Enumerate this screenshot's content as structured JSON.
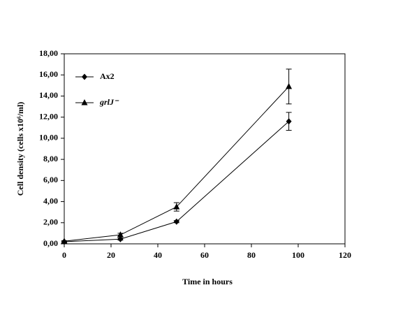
{
  "chart_data": {
    "type": "line",
    "xlabel": "Time in hours",
    "ylabel": "Cell density (cells x10⁶/ml)",
    "xlim": [
      0,
      120
    ],
    "xticks": [
      0,
      20,
      40,
      60,
      80,
      100,
      120
    ],
    "ylim": [
      0,
      18
    ],
    "yticks": [
      {
        "value": 0,
        "label": "0,00"
      },
      {
        "value": 2,
        "label": "2,00"
      },
      {
        "value": 4,
        "label": "4,00"
      },
      {
        "value": 6,
        "label": "6,00"
      },
      {
        "value": 8,
        "label": "8,00"
      },
      {
        "value": 10,
        "label": "10,00"
      },
      {
        "value": 12,
        "label": "12,00"
      },
      {
        "value": 14,
        "label": "14,00"
      },
      {
        "value": 16,
        "label": "16,00"
      },
      {
        "value": 18,
        "label": "18,00"
      }
    ],
    "x": [
      0,
      24,
      48,
      96
    ],
    "series": [
      {
        "name": "Ax2",
        "color": "#000000",
        "marker": "diamond",
        "values": [
          0.2,
          0.45,
          2.1,
          11.6
        ],
        "errors": [
          0.05,
          0.1,
          0.1,
          0.85
        ]
      },
      {
        "name": "grlJ⁻",
        "color": "#000000",
        "marker": "triangle",
        "values": [
          0.25,
          0.85,
          3.5,
          14.9
        ],
        "errors": [
          0.05,
          0.15,
          0.4,
          1.65
        ]
      }
    ],
    "legend": "upper left"
  }
}
